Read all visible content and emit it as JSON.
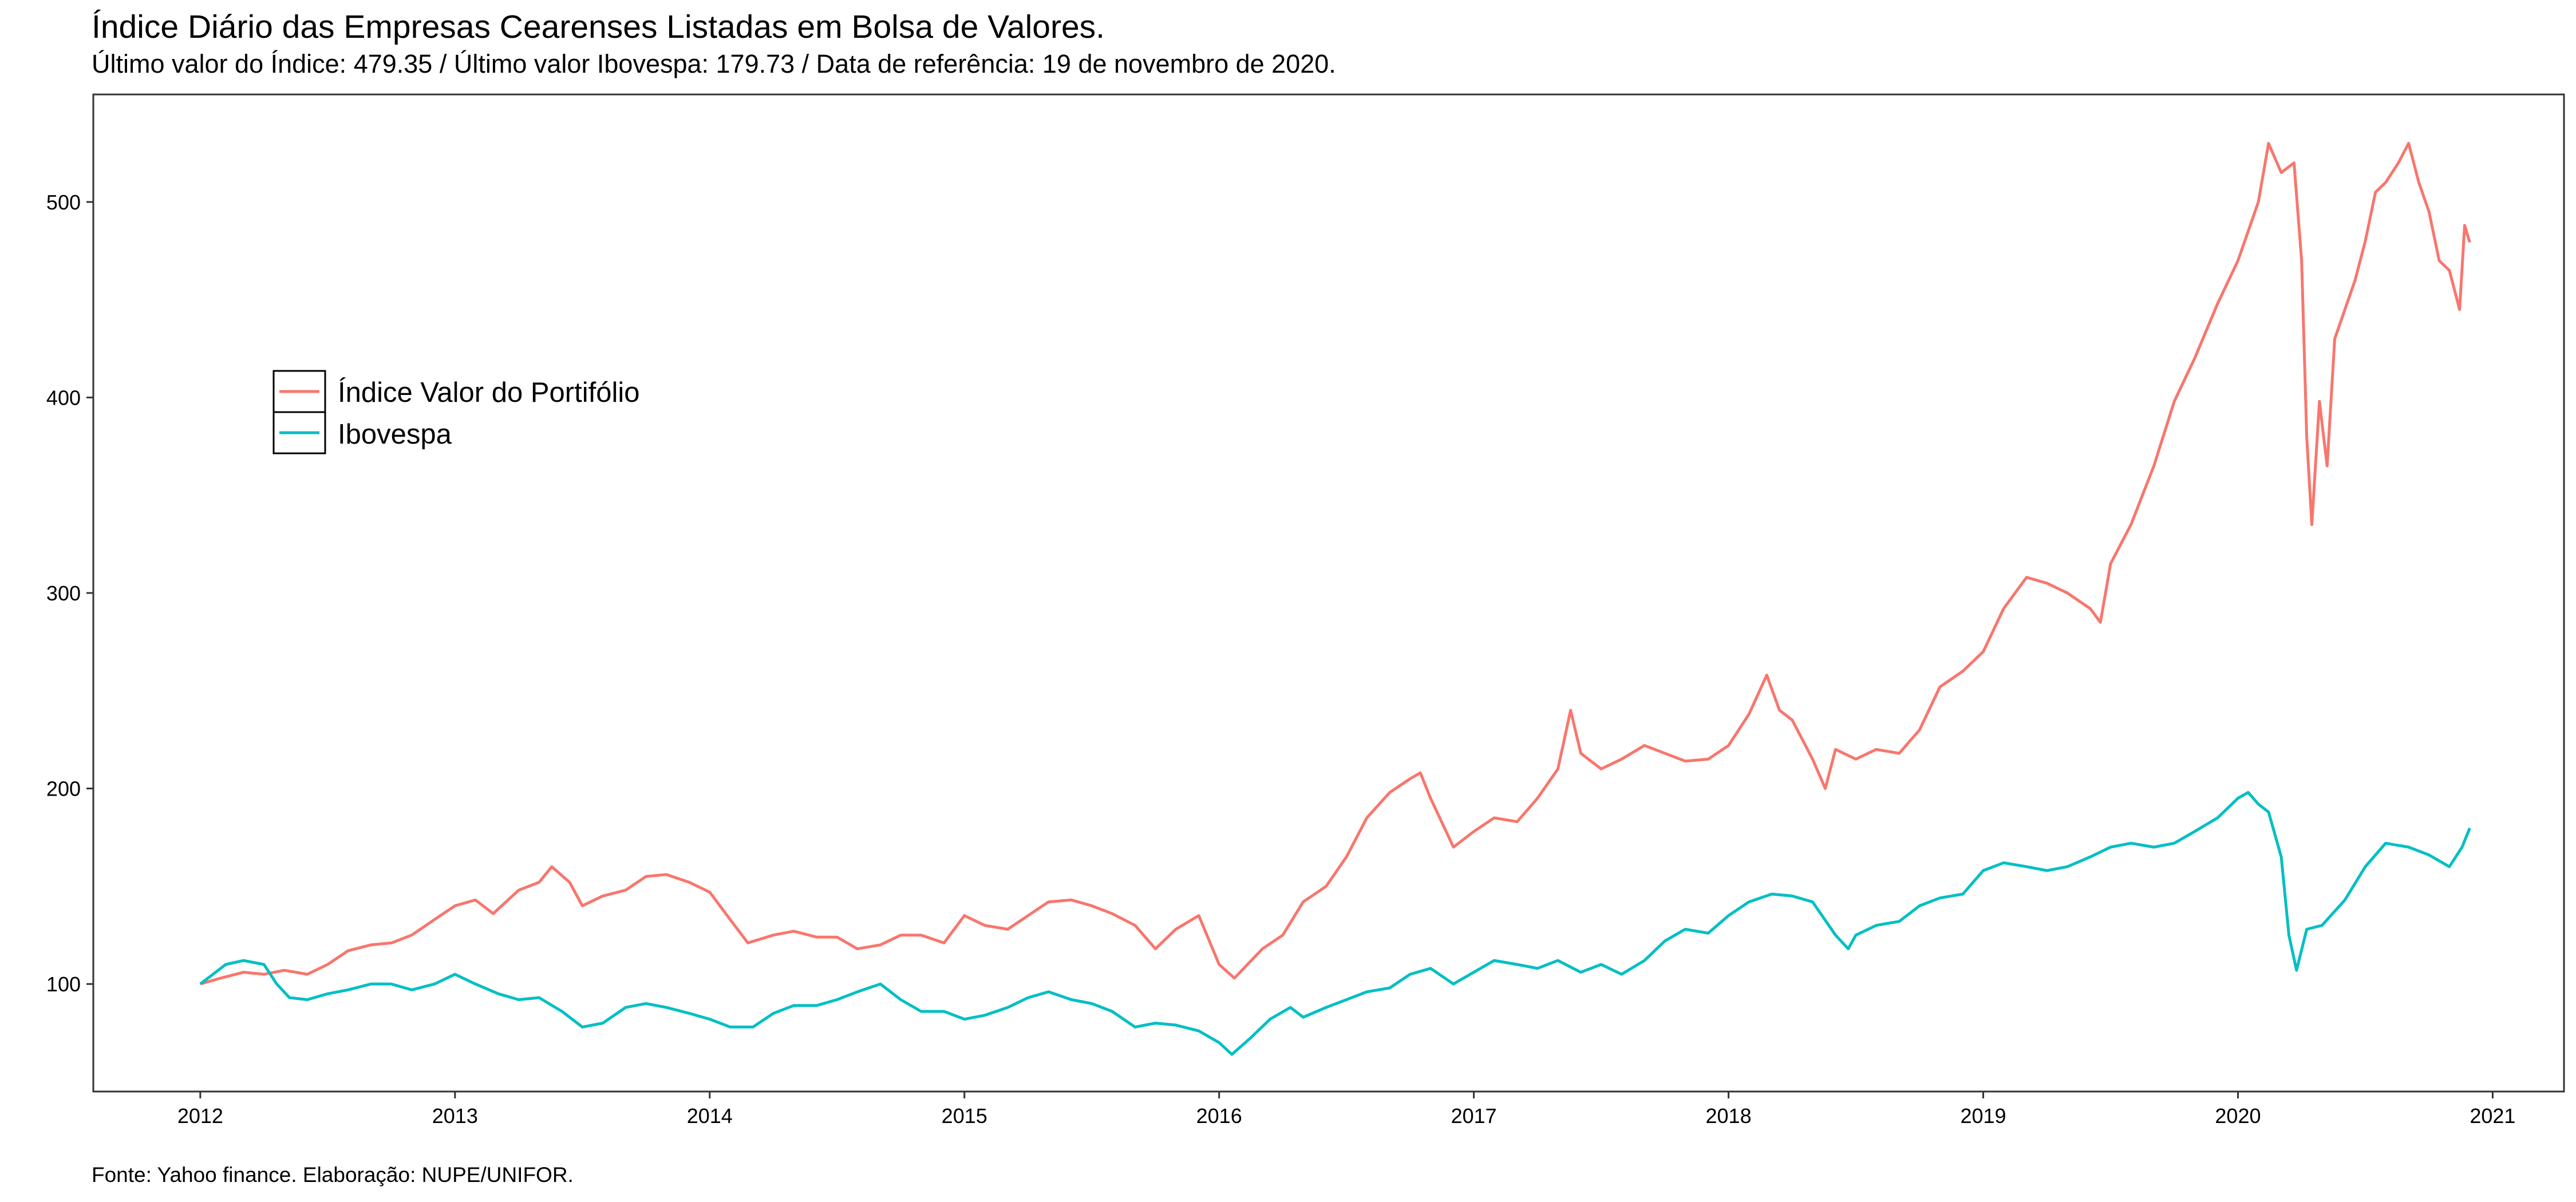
{
  "title": "Índice Diário das Empresas Cearenses Listadas em Bolsa de Valores.",
  "subtitle": "Último valor do Índice: 479.35 / Último valor Ibovespa: 179.73 / Data de referência: 19 de novembro de 2020.",
  "caption": "Fonte: Yahoo finance. Elaboração: NUPE/UNIFOR.",
  "chart_data": {
    "type": "line",
    "title": "Índice Diário das Empresas Cearenses Listadas em Bolsa de Valores.",
    "xlabel": "",
    "ylabel": "",
    "x_unit": "year",
    "xlim": [
      2011.58,
      2021.28
    ],
    "ylim": [
      45,
      555
    ],
    "x_ticks": [
      2012,
      2013,
      2014,
      2015,
      2016,
      2017,
      2018,
      2019,
      2020,
      2021
    ],
    "y_ticks": [
      100,
      200,
      300,
      400,
      500
    ],
    "grid": false,
    "legend_position": "left",
    "series": [
      {
        "name": "Índice Valor do Portifólio",
        "color": "#F8766D",
        "points": [
          [
            2012.0,
            100
          ],
          [
            2012.08,
            103
          ],
          [
            2012.17,
            106
          ],
          [
            2012.25,
            105
          ],
          [
            2012.33,
            107
          ],
          [
            2012.42,
            105
          ],
          [
            2012.5,
            110
          ],
          [
            2012.58,
            117
          ],
          [
            2012.67,
            120
          ],
          [
            2012.75,
            121
          ],
          [
            2012.83,
            125
          ],
          [
            2012.92,
            133
          ],
          [
            2013.0,
            140
          ],
          [
            2013.08,
            143
          ],
          [
            2013.15,
            136
          ],
          [
            2013.25,
            148
          ],
          [
            2013.33,
            152
          ],
          [
            2013.38,
            160
          ],
          [
            2013.45,
            152
          ],
          [
            2013.5,
            140
          ],
          [
            2013.58,
            145
          ],
          [
            2013.67,
            148
          ],
          [
            2013.75,
            155
          ],
          [
            2013.83,
            156
          ],
          [
            2013.92,
            152
          ],
          [
            2014.0,
            147
          ],
          [
            2014.08,
            133
          ],
          [
            2014.15,
            121
          ],
          [
            2014.25,
            125
          ],
          [
            2014.33,
            127
          ],
          [
            2014.42,
            124
          ],
          [
            2014.5,
            124
          ],
          [
            2014.58,
            118
          ],
          [
            2014.67,
            120
          ],
          [
            2014.75,
            125
          ],
          [
            2014.83,
            125
          ],
          [
            2014.92,
            121
          ],
          [
            2015.0,
            135
          ],
          [
            2015.08,
            130
          ],
          [
            2015.17,
            128
          ],
          [
            2015.25,
            135
          ],
          [
            2015.33,
            142
          ],
          [
            2015.42,
            143
          ],
          [
            2015.5,
            140
          ],
          [
            2015.58,
            136
          ],
          [
            2015.67,
            130
          ],
          [
            2015.75,
            118
          ],
          [
            2015.83,
            128
          ],
          [
            2015.92,
            135
          ],
          [
            2016.0,
            110
          ],
          [
            2016.06,
            103
          ],
          [
            2016.17,
            118
          ],
          [
            2016.25,
            125
          ],
          [
            2016.33,
            142
          ],
          [
            2016.42,
            150
          ],
          [
            2016.5,
            165
          ],
          [
            2016.58,
            185
          ],
          [
            2016.67,
            198
          ],
          [
            2016.75,
            205
          ],
          [
            2016.79,
            208
          ],
          [
            2016.83,
            195
          ],
          [
            2016.92,
            170
          ],
          [
            2017.0,
            178
          ],
          [
            2017.08,
            185
          ],
          [
            2017.17,
            183
          ],
          [
            2017.25,
            195
          ],
          [
            2017.33,
            210
          ],
          [
            2017.38,
            240
          ],
          [
            2017.42,
            218
          ],
          [
            2017.5,
            210
          ],
          [
            2017.58,
            215
          ],
          [
            2017.67,
            222
          ],
          [
            2017.75,
            218
          ],
          [
            2017.83,
            214
          ],
          [
            2017.92,
            215
          ],
          [
            2018.0,
            222
          ],
          [
            2018.08,
            238
          ],
          [
            2018.15,
            258
          ],
          [
            2018.2,
            240
          ],
          [
            2018.25,
            235
          ],
          [
            2018.33,
            215
          ],
          [
            2018.38,
            200
          ],
          [
            2018.42,
            220
          ],
          [
            2018.5,
            215
          ],
          [
            2018.58,
            220
          ],
          [
            2018.67,
            218
          ],
          [
            2018.75,
            230
          ],
          [
            2018.83,
            252
          ],
          [
            2018.92,
            260
          ],
          [
            2019.0,
            270
          ],
          [
            2019.08,
            292
          ],
          [
            2019.17,
            308
          ],
          [
            2019.25,
            305
          ],
          [
            2019.33,
            300
          ],
          [
            2019.42,
            292
          ],
          [
            2019.46,
            285
          ],
          [
            2019.5,
            315
          ],
          [
            2019.58,
            335
          ],
          [
            2019.67,
            365
          ],
          [
            2019.75,
            398
          ],
          [
            2019.83,
            420
          ],
          [
            2019.92,
            448
          ],
          [
            2020.0,
            470
          ],
          [
            2020.08,
            500
          ],
          [
            2020.12,
            530
          ],
          [
            2020.17,
            515
          ],
          [
            2020.22,
            520
          ],
          [
            2020.25,
            470
          ],
          [
            2020.27,
            380
          ],
          [
            2020.29,
            335
          ],
          [
            2020.32,
            398
          ],
          [
            2020.35,
            365
          ],
          [
            2020.38,
            430
          ],
          [
            2020.42,
            445
          ],
          [
            2020.46,
            460
          ],
          [
            2020.5,
            480
          ],
          [
            2020.54,
            505
          ],
          [
            2020.58,
            510
          ],
          [
            2020.63,
            520
          ],
          [
            2020.67,
            530
          ],
          [
            2020.71,
            510
          ],
          [
            2020.75,
            495
          ],
          [
            2020.79,
            470
          ],
          [
            2020.83,
            465
          ],
          [
            2020.87,
            445
          ],
          [
            2020.89,
            488
          ],
          [
            2020.91,
            479.35
          ]
        ]
      },
      {
        "name": "Ibovespa",
        "color": "#00BFC4",
        "points": [
          [
            2012.0,
            100
          ],
          [
            2012.05,
            105
          ],
          [
            2012.1,
            110
          ],
          [
            2012.17,
            112
          ],
          [
            2012.25,
            110
          ],
          [
            2012.3,
            100
          ],
          [
            2012.35,
            93
          ],
          [
            2012.42,
            92
          ],
          [
            2012.5,
            95
          ],
          [
            2012.58,
            97
          ],
          [
            2012.67,
            100
          ],
          [
            2012.75,
            100
          ],
          [
            2012.83,
            97
          ],
          [
            2012.92,
            100
          ],
          [
            2013.0,
            105
          ],
          [
            2013.08,
            100
          ],
          [
            2013.17,
            95
          ],
          [
            2013.25,
            92
          ],
          [
            2013.33,
            93
          ],
          [
            2013.42,
            86
          ],
          [
            2013.5,
            78
          ],
          [
            2013.58,
            80
          ],
          [
            2013.67,
            88
          ],
          [
            2013.75,
            90
          ],
          [
            2013.83,
            88
          ],
          [
            2013.92,
            85
          ],
          [
            2014.0,
            82
          ],
          [
            2014.08,
            78
          ],
          [
            2014.17,
            78
          ],
          [
            2014.25,
            85
          ],
          [
            2014.33,
            89
          ],
          [
            2014.42,
            89
          ],
          [
            2014.5,
            92
          ],
          [
            2014.58,
            96
          ],
          [
            2014.67,
            100
          ],
          [
            2014.75,
            92
          ],
          [
            2014.83,
            86
          ],
          [
            2014.92,
            86
          ],
          [
            2015.0,
            82
          ],
          [
            2015.08,
            84
          ],
          [
            2015.17,
            88
          ],
          [
            2015.25,
            93
          ],
          [
            2015.33,
            96
          ],
          [
            2015.42,
            92
          ],
          [
            2015.5,
            90
          ],
          [
            2015.58,
            86
          ],
          [
            2015.67,
            78
          ],
          [
            2015.75,
            80
          ],
          [
            2015.83,
            79
          ],
          [
            2015.92,
            76
          ],
          [
            2016.0,
            70
          ],
          [
            2016.05,
            64
          ],
          [
            2016.12,
            72
          ],
          [
            2016.2,
            82
          ],
          [
            2016.28,
            88
          ],
          [
            2016.33,
            83
          ],
          [
            2016.42,
            88
          ],
          [
            2016.5,
            92
          ],
          [
            2016.58,
            96
          ],
          [
            2016.67,
            98
          ],
          [
            2016.75,
            105
          ],
          [
            2016.83,
            108
          ],
          [
            2016.92,
            100
          ],
          [
            2017.0,
            106
          ],
          [
            2017.08,
            112
          ],
          [
            2017.17,
            110
          ],
          [
            2017.25,
            108
          ],
          [
            2017.33,
            112
          ],
          [
            2017.42,
            106
          ],
          [
            2017.5,
            110
          ],
          [
            2017.58,
            105
          ],
          [
            2017.67,
            112
          ],
          [
            2017.75,
            122
          ],
          [
            2017.83,
            128
          ],
          [
            2017.92,
            126
          ],
          [
            2018.0,
            135
          ],
          [
            2018.08,
            142
          ],
          [
            2018.17,
            146
          ],
          [
            2018.25,
            145
          ],
          [
            2018.33,
            142
          ],
          [
            2018.42,
            125
          ],
          [
            2018.47,
            118
          ],
          [
            2018.5,
            125
          ],
          [
            2018.58,
            130
          ],
          [
            2018.67,
            132
          ],
          [
            2018.75,
            140
          ],
          [
            2018.83,
            144
          ],
          [
            2018.92,
            146
          ],
          [
            2019.0,
            158
          ],
          [
            2019.08,
            162
          ],
          [
            2019.17,
            160
          ],
          [
            2019.25,
            158
          ],
          [
            2019.33,
            160
          ],
          [
            2019.42,
            165
          ],
          [
            2019.5,
            170
          ],
          [
            2019.58,
            172
          ],
          [
            2019.67,
            170
          ],
          [
            2019.75,
            172
          ],
          [
            2019.83,
            178
          ],
          [
            2019.92,
            185
          ],
          [
            2020.0,
            195
          ],
          [
            2020.04,
            198
          ],
          [
            2020.08,
            192
          ],
          [
            2020.12,
            188
          ],
          [
            2020.17,
            165
          ],
          [
            2020.2,
            125
          ],
          [
            2020.23,
            107
          ],
          [
            2020.27,
            128
          ],
          [
            2020.33,
            130
          ],
          [
            2020.42,
            143
          ],
          [
            2020.5,
            160
          ],
          [
            2020.58,
            172
          ],
          [
            2020.67,
            170
          ],
          [
            2020.75,
            166
          ],
          [
            2020.83,
            160
          ],
          [
            2020.88,
            170
          ],
          [
            2020.91,
            179.73
          ]
        ]
      }
    ]
  }
}
